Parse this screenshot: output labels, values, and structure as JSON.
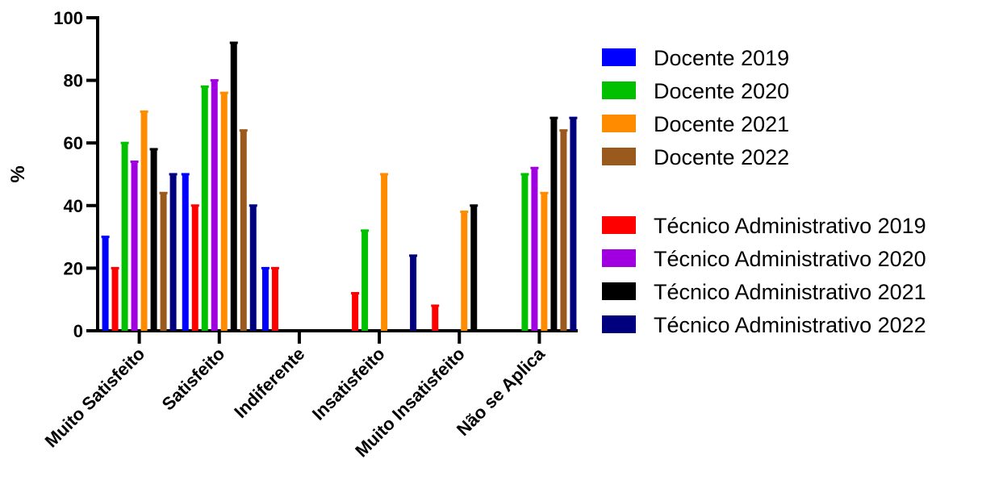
{
  "chart_data": {
    "type": "bar",
    "title": "",
    "xlabel": "",
    "ylabel": "%",
    "ylim": [
      0,
      100
    ],
    "yticks": [
      "0",
      "20",
      "40",
      "60",
      "80",
      "100"
    ],
    "grid": false,
    "legend_position": "right",
    "categories": [
      "Muito Satisfeito",
      "Satisfeito",
      "Indiferente",
      "Insatisfeito",
      "Muito Insatisfeito",
      "Não se Aplica"
    ],
    "series": [
      {
        "name": "Docente 2019",
        "color": "#0000ff",
        "values": [
          30,
          50,
          20,
          0,
          0,
          0
        ]
      },
      {
        "name": "Técnico Administrativo 2019",
        "color": "#ff0000",
        "values": [
          20,
          40,
          20,
          12,
          8,
          0
        ]
      },
      {
        "name": "Docente 2020",
        "color": "#00c000",
        "values": [
          60,
          78,
          0,
          32,
          0,
          50
        ]
      },
      {
        "name": "Técnico Administrativo 2020",
        "color": "#a000e0",
        "values": [
          54,
          80,
          0,
          0,
          0,
          52
        ]
      },
      {
        "name": "Docente 2021",
        "color": "#ff8c00",
        "values": [
          70,
          76,
          0,
          50,
          38,
          44
        ]
      },
      {
        "name": "Técnico Administrativo 2021",
        "color": "#000000",
        "values": [
          58,
          92,
          0,
          0,
          40,
          68
        ]
      },
      {
        "name": "Docente 2022",
        "color": "#9a5a1e",
        "values": [
          44,
          64,
          0,
          0,
          0,
          64
        ]
      },
      {
        "name": "Técnico Administrativo 2022",
        "color": "#00007f",
        "values": [
          50,
          40,
          0,
          24,
          0,
          68
        ]
      }
    ],
    "legend_groups": [
      [
        "Docente 2019",
        "Docente 2020",
        "Docente 2021",
        "Docente 2022"
      ],
      [
        "Técnico Administrativo 2019",
        "Técnico Administrativo 2020",
        "Técnico Administrativo 2021",
        "Técnico Administrativo 2022"
      ]
    ]
  }
}
